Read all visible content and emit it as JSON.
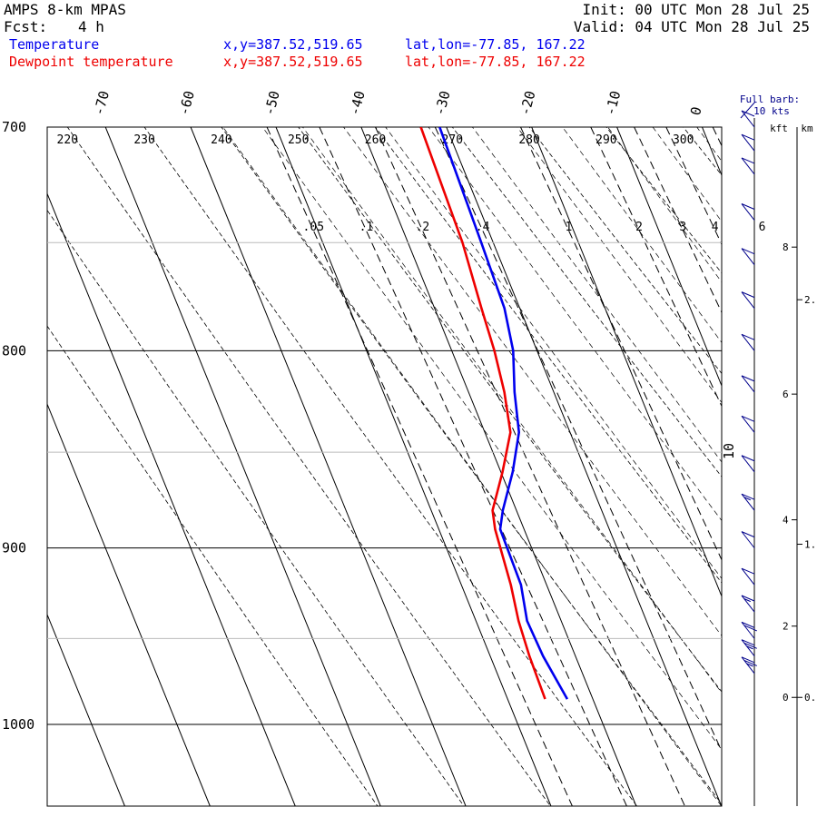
{
  "header": {
    "model": "AMPS 8-km MPAS",
    "fcst_label": "Fcst:",
    "fcst_value": "4 h",
    "init": "Init: 00 UTC Mon 28 Jul 25",
    "valid": "Valid: 04 UTC Mon 28 Jul 25"
  },
  "colors": {
    "temperature": "#0000ee",
    "dewpoint": "#ee0000",
    "barbs": "#00008b",
    "axes": "#000000",
    "isobar_minor": "#bbbbbb"
  },
  "chart_data": {
    "type": "line",
    "subtype": "skew-T log-p sounding",
    "series": [
      {
        "name": "Temperature",
        "coords": "x,y=387.52,519.65",
        "latlon": "lat,lon=-77.85, 167.22",
        "x": [
          -30.8,
          -31.4,
          -31.8,
          -32.8,
          -34.6,
          -36.0,
          -38.6,
          -41.6,
          -42.8,
          -43.0,
          -44.0,
          -43.8,
          -43.0
        ],
        "y": [
          700,
          750,
          780,
          800,
          820,
          840,
          860,
          880,
          890,
          920,
          940,
          960,
          985
        ]
      },
      {
        "name": "Dewpoint temperature",
        "coords": "x,y=387.52,519.65",
        "latlon": "lat,lon=-77.85, 167.22",
        "x": [
          -33.0,
          -33.6,
          -34.5,
          -35.0,
          -35.8,
          -37.0,
          -39.8,
          -42.8,
          -43.4,
          -44.2,
          -45.0,
          -45.4,
          -45.6
        ],
        "y": [
          700,
          750,
          780,
          800,
          820,
          840,
          860,
          880,
          890,
          920,
          940,
          960,
          985
        ]
      }
    ],
    "pressure_ticks": [
      700,
      800,
      900,
      1000
    ],
    "temp_ticks": [
      -70,
      -60,
      -50,
      -40,
      -30,
      -20,
      -10,
      0
    ],
    "theta_labels": [
      220,
      230,
      240,
      250,
      260,
      270,
      280,
      290,
      300
    ],
    "mixing_ratio_labels": [
      ".05",
      ".1",
      ".2",
      ".4",
      "1",
      "2",
      "3",
      "4",
      "6"
    ],
    "moist_adiabat_label": "10",
    "barb_legend": [
      "Full barb:",
      "10 kts"
    ],
    "height_axis": {
      "kft_label": "kft",
      "km_label": "km",
      "kft_ticks": [
        0,
        2,
        4,
        6,
        8
      ],
      "kft_values": [
        984,
        943,
        885,
        821,
        752
      ],
      "km_ticks": [
        "0.",
        "1.",
        "2."
      ],
      "km_values": [
        984,
        898,
        776
      ]
    },
    "wind_barbs": {
      "p": [
        700,
        710,
        720,
        740,
        760,
        780,
        800,
        820,
        840,
        860,
        880,
        900,
        920,
        935,
        950,
        960,
        970
      ],
      "speed_kt": [
        10,
        10,
        10,
        10,
        10,
        10,
        10,
        10,
        10,
        10,
        15,
        10,
        10,
        15,
        20,
        25,
        25
      ]
    },
    "ylim": [
      700,
      1050
    ],
    "xlim_at_bottom": [
      -50,
      3
    ]
  }
}
